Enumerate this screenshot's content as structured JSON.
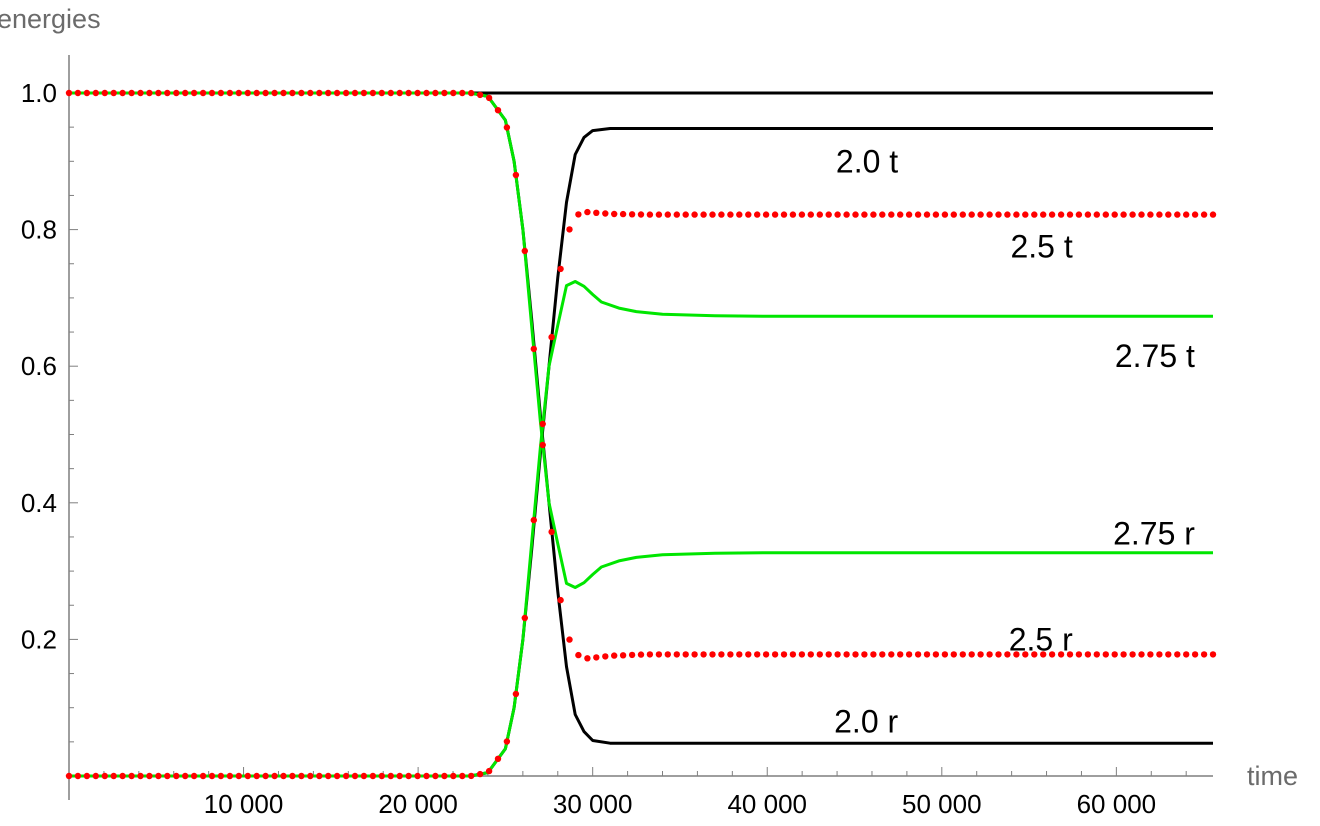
{
  "chart_data": {
    "type": "line",
    "xlabel": "time",
    "ylabel": "energies",
    "xlim": [
      0,
      65536
    ],
    "ylim": [
      0,
      1.05
    ],
    "xticks": [
      {
        "value": 10000,
        "label": "10 000"
      },
      {
        "value": 20000,
        "label": "20 000"
      },
      {
        "value": 30000,
        "label": "30 000"
      },
      {
        "value": 40000,
        "label": "40 000"
      },
      {
        "value": 50000,
        "label": "50 000"
      },
      {
        "value": 60000,
        "label": "60 000"
      }
    ],
    "yticks": [
      {
        "value": 0.2,
        "label": "0.2"
      },
      {
        "value": 0.4,
        "label": "0.4"
      },
      {
        "value": 0.6,
        "label": "0.6"
      },
      {
        "value": 0.8,
        "label": "0.8"
      },
      {
        "value": 1.0,
        "label": "1.0"
      }
    ],
    "grid": false,
    "colors": {
      "black": "#000000",
      "red": "#ff0000",
      "green": "#00e600",
      "axis": "#7f7f7f"
    },
    "reference_line": {
      "y": 1.0,
      "color": "#000000"
    },
    "series": [
      {
        "group": "2.0",
        "kind": "t",
        "style": "line",
        "color": "#000000",
        "x": [
          0,
          23000,
          24000,
          25000,
          25500,
          26000,
          26500,
          27000,
          27500,
          28000,
          28500,
          29000,
          29500,
          30000,
          31000,
          33000,
          65536
        ],
        "y": [
          0.0,
          0.0,
          0.005,
          0.04,
          0.1,
          0.2,
          0.33,
          0.47,
          0.6,
          0.73,
          0.84,
          0.91,
          0.935,
          0.945,
          0.948,
          0.948,
          0.948
        ]
      },
      {
        "group": "2.0",
        "kind": "r",
        "style": "line",
        "color": "#000000",
        "x": [
          0,
          23000,
          24000,
          25000,
          25500,
          26000,
          26500,
          27000,
          27500,
          28000,
          28500,
          29000,
          29500,
          30000,
          31000,
          33000,
          65536
        ],
        "y": [
          1.0,
          1.0,
          0.995,
          0.96,
          0.9,
          0.8,
          0.67,
          0.53,
          0.4,
          0.27,
          0.16,
          0.09,
          0.065,
          0.052,
          0.048,
          0.048,
          0.048
        ]
      },
      {
        "group": "2.5",
        "kind": "t",
        "style": "dotted",
        "color": "#ff0000",
        "x": [
          0,
          23000,
          24000,
          25000,
          25500,
          26000,
          26500,
          27000,
          27500,
          28000,
          28500,
          29000,
          29500,
          30000,
          31000,
          33000,
          65536
        ],
        "y": [
          0.0,
          0.0,
          0.005,
          0.04,
          0.1,
          0.2,
          0.34,
          0.48,
          0.61,
          0.72,
          0.79,
          0.82,
          0.826,
          0.825,
          0.823,
          0.822,
          0.822
        ]
      },
      {
        "group": "2.5",
        "kind": "r",
        "style": "dotted",
        "color": "#ff0000",
        "x": [
          0,
          23000,
          24000,
          25000,
          25500,
          26000,
          26500,
          27000,
          27500,
          28000,
          28500,
          29000,
          29500,
          30000,
          31000,
          33000,
          65536
        ],
        "y": [
          1.0,
          1.0,
          0.995,
          0.96,
          0.9,
          0.8,
          0.66,
          0.52,
          0.39,
          0.28,
          0.21,
          0.18,
          0.172,
          0.173,
          0.176,
          0.178,
          0.178
        ]
      },
      {
        "group": "2.75",
        "kind": "t",
        "style": "line",
        "color": "#00e600",
        "x": [
          0,
          23000,
          24000,
          25000,
          25500,
          26000,
          26500,
          27000,
          27500,
          28000,
          28500,
          29000,
          29500,
          30000,
          30500,
          31500,
          32500,
          34000,
          37000,
          40000,
          65536
        ],
        "y": [
          0.0,
          0.0,
          0.005,
          0.04,
          0.1,
          0.2,
          0.34,
          0.48,
          0.6,
          0.66,
          0.718,
          0.724,
          0.717,
          0.705,
          0.694,
          0.685,
          0.68,
          0.676,
          0.674,
          0.673,
          0.673
        ]
      },
      {
        "group": "2.75",
        "kind": "r",
        "style": "line",
        "color": "#00e600",
        "x": [
          0,
          23000,
          24000,
          25000,
          25500,
          26000,
          26500,
          27000,
          27500,
          28000,
          28500,
          29000,
          29500,
          30000,
          30500,
          31500,
          32500,
          34000,
          37000,
          40000,
          65536
        ],
        "y": [
          1.0,
          1.0,
          0.995,
          0.96,
          0.9,
          0.8,
          0.66,
          0.52,
          0.4,
          0.34,
          0.282,
          0.276,
          0.283,
          0.295,
          0.306,
          0.315,
          0.32,
          0.324,
          0.326,
          0.327,
          0.327
        ]
      }
    ],
    "annotations": [
      {
        "text": "2.0 t",
        "x": 47500,
        "y": 0.9
      },
      {
        "text": "2.5 t",
        "x": 57500,
        "y": 0.775
      },
      {
        "text": "2.75 t",
        "x": 64500,
        "y": 0.615
      },
      {
        "text": "2.75 r",
        "x": 64500,
        "y": 0.355
      },
      {
        "text": "2.5 r",
        "x": 57500,
        "y": 0.2
      },
      {
        "text": "2.0 r",
        "x": 47500,
        "y": 0.08
      }
    ]
  }
}
